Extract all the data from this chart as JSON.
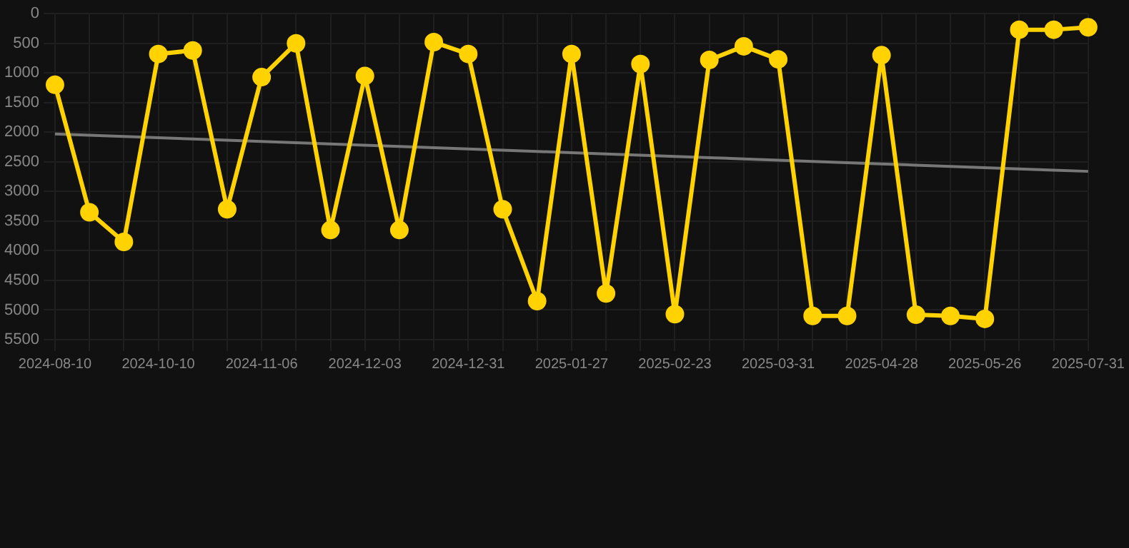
{
  "chart_data": {
    "type": "line",
    "categories": [
      "2024-08-10",
      null,
      null,
      "2024-10-10",
      null,
      null,
      "2024-11-06",
      null,
      null,
      "2024-12-03",
      null,
      null,
      "2024-12-31",
      null,
      null,
      "2025-01-27",
      null,
      null,
      "2025-02-23",
      null,
      null,
      "2025-03-31",
      null,
      null,
      "2025-04-28",
      null,
      null,
      "2025-05-26",
      null,
      null,
      "2025-07-31"
    ],
    "series": [
      {
        "color": "#ffd200",
        "values": [
          1200,
          3350,
          3850,
          680,
          620,
          3300,
          1070,
          500,
          3650,
          1050,
          3650,
          480,
          680,
          3300,
          4850,
          680,
          4720,
          850,
          5070,
          780,
          550,
          770,
          5100,
          5100,
          700,
          5080,
          5100,
          5150,
          270,
          270,
          230
        ]
      },
      {
        "type": "line",
        "color": "#777777",
        "marker": "none",
        "values": [
          2030,
          2051,
          2072,
          2093,
          2114,
          2135,
          2156,
          2177,
          2198,
          2219,
          2240,
          2261,
          2282,
          2303,
          2324,
          2345,
          2366,
          2387,
          2408,
          2429,
          2450,
          2471,
          2492,
          2513,
          2534,
          2555,
          2576,
          2597,
          2618,
          2639,
          2660
        ]
      }
    ],
    "ylim": [
      5500,
      0
    ],
    "yticks": [
      0,
      500,
      1000,
      1500,
      2000,
      2500,
      3000,
      3500,
      4000,
      4500,
      5000,
      5500
    ],
    "grid": true,
    "marker": "circle",
    "line_style": "solid",
    "legend": false
  }
}
